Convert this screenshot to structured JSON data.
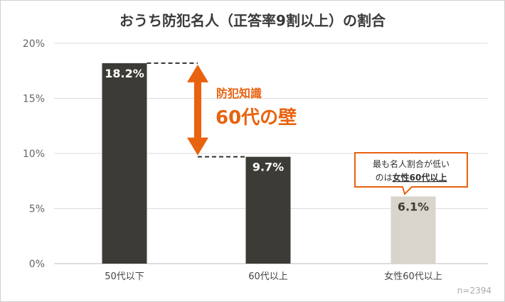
{
  "chart_data": {
    "type": "bar",
    "title": "おうち防犯名人（正答率9割以上）の割合",
    "categories": [
      "50代以下",
      "60代以上",
      "女性60代以上"
    ],
    "values": [
      18.2,
      9.7,
      6.1
    ],
    "data_labels": [
      "18.2%",
      "9.7%",
      "6.1%"
    ],
    "ylim": [
      0,
      20
    ],
    "yticks": [
      "0%",
      "5%",
      "10%",
      "15%",
      "20%"
    ],
    "grid": true,
    "bar_colors": [
      "#3d3b36",
      "#3d3b36",
      "#d9d4cc"
    ],
    "annotation": {
      "line1": "防犯知識",
      "line2": "60代の壁",
      "color": "#e8620f"
    },
    "callout": {
      "line1": "最も名人割合が低い",
      "line2_prefix": "のは",
      "line2_emph": "女性60代以上",
      "border": "#e8620f"
    },
    "note": "n=2394"
  }
}
